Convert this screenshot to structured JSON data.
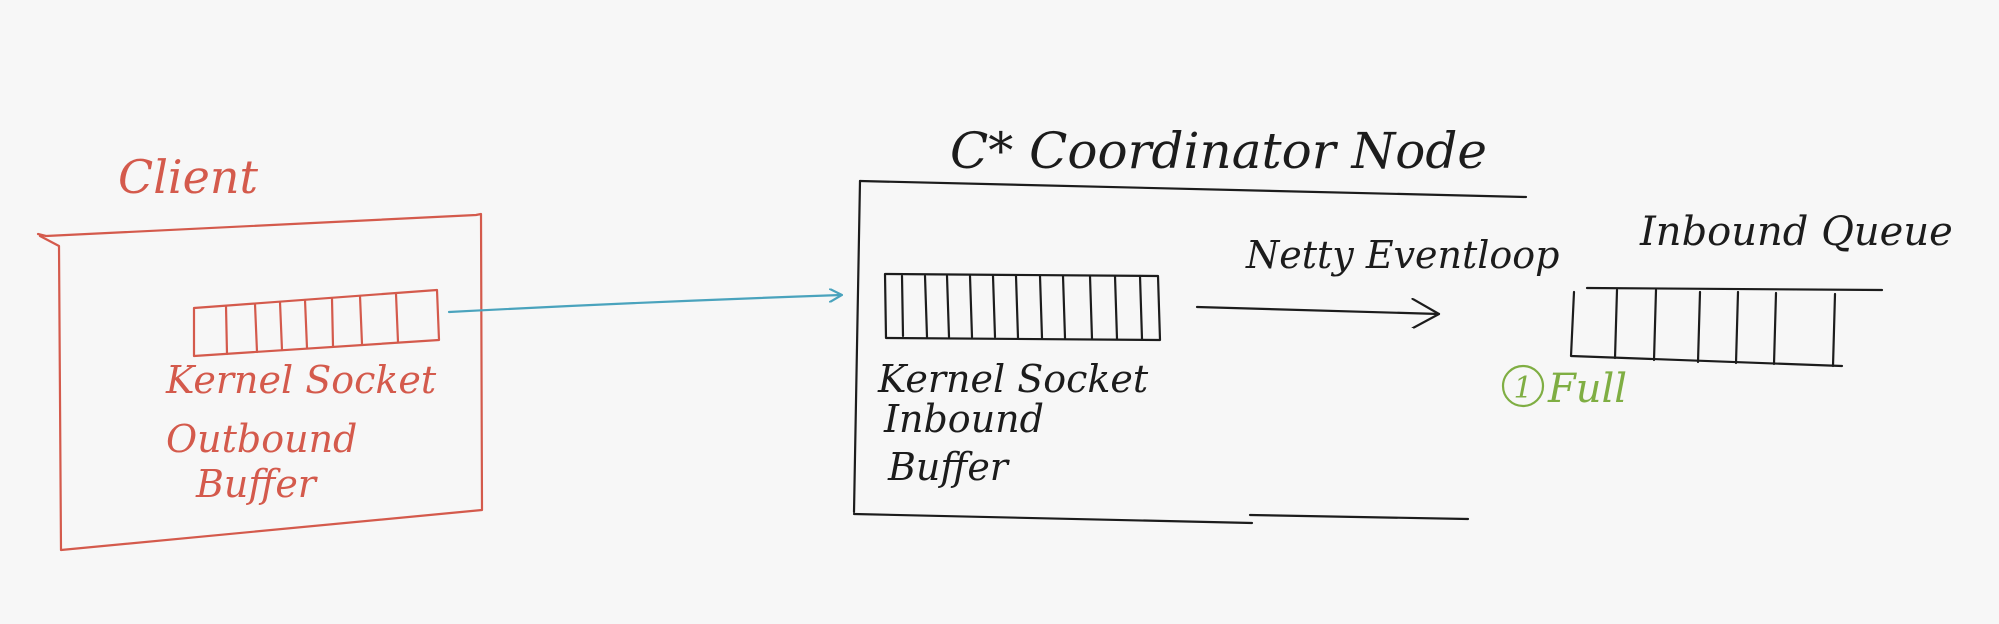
{
  "colors": {
    "background": "#f7f7f7",
    "client_ink": "#d45a4c",
    "node_ink": "#1c1c1c",
    "arrow": "#4aa3bd",
    "status": "#7fae43"
  },
  "client": {
    "title": "Client",
    "buffer_label": [
      "Kernel Socket",
      "Outbound",
      "Buffer"
    ]
  },
  "coordinator": {
    "title": "C* Coordinator Node",
    "buffer_label": [
      "Kernel Socket",
      "Inbound",
      "Buffer"
    ],
    "eventloop_label": "Netty Eventloop",
    "queue_title": "Inbound Queue",
    "status": {
      "number": "1",
      "text": "Full"
    }
  }
}
